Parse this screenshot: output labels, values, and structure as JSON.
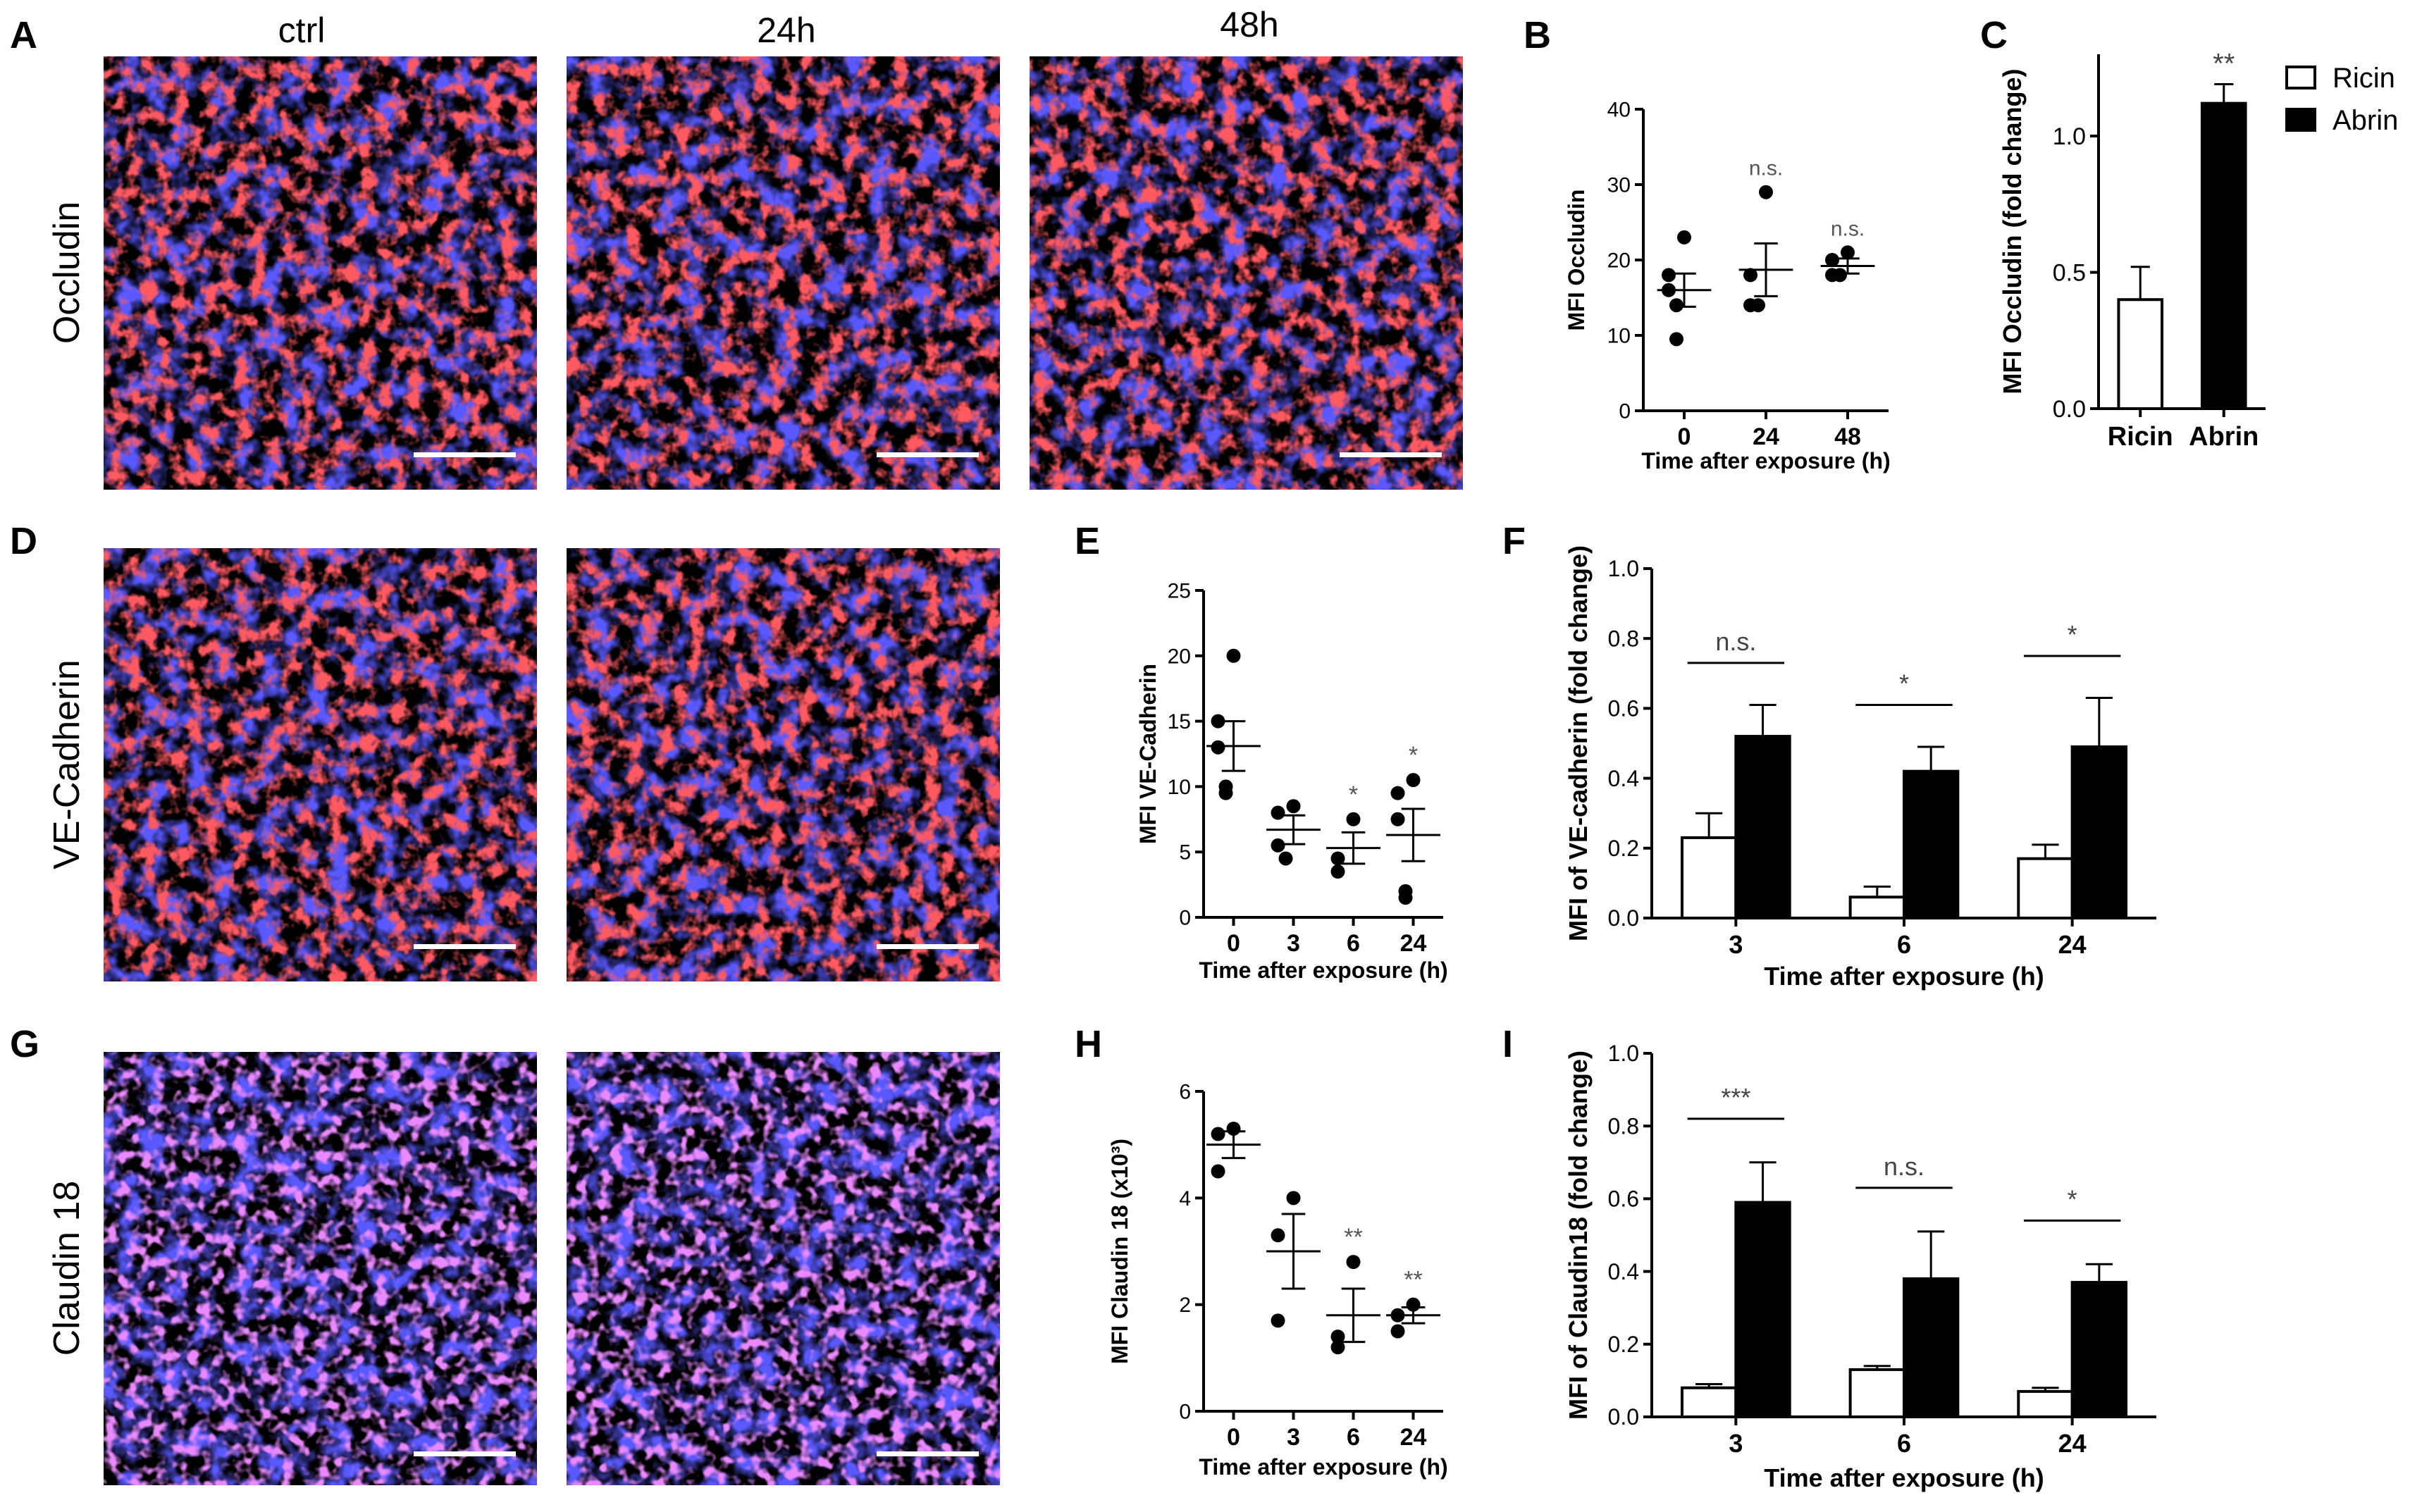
{
  "panel_letters": [
    "A",
    "B",
    "C",
    "D",
    "E",
    "F",
    "G",
    "H",
    "I"
  ],
  "columns": [
    "ctrl",
    "24h",
    "48h"
  ],
  "rows": [
    "Occludin",
    "VE-Cadherin",
    "Claudin 18"
  ],
  "legend": {
    "items": [
      {
        "label": "Ricin",
        "color": "#ffffff"
      },
      {
        "label": "Abrin",
        "color": "#000000"
      }
    ]
  },
  "colors": {
    "nuclei": "#1a1aff",
    "stain": "#ff1a1a",
    "magenta": "#d040ff",
    "background": "#000000"
  },
  "chart_data": [
    {
      "id": "B",
      "type": "scatter",
      "ylabel": "MFI Occludin",
      "xlabel": "Time after exposure (h)",
      "categories": [
        "0",
        "24",
        "48"
      ],
      "ylim": [
        0,
        40
      ],
      "yticks": [
        0,
        10,
        20,
        30,
        40
      ],
      "series": [
        {
          "x": "0",
          "points": [
            23,
            18,
            16,
            14,
            9.5
          ],
          "mean": 16,
          "sem": 2.2
        },
        {
          "x": "24",
          "points": [
            29,
            18,
            14,
            14
          ],
          "mean": 18.7,
          "sem": 3.5
        },
        {
          "x": "48",
          "points": [
            21,
            20,
            18,
            18
          ],
          "mean": 19.2,
          "sem": 1.0
        }
      ],
      "annotations": [
        {
          "x": "24",
          "text": "n.s."
        },
        {
          "x": "48",
          "text": "n.s."
        }
      ]
    },
    {
      "id": "C",
      "type": "bar",
      "ylabel": "MFI Occludin (fold change)",
      "categories": [
        "Ricin",
        "Abrin"
      ],
      "ylim": [
        0,
        1.3
      ],
      "yticks": [
        0.0,
        0.5,
        1.0
      ],
      "values": [
        0.4,
        1.12
      ],
      "errors": [
        0.12,
        0.07
      ],
      "fills": [
        "#ffffff",
        "#000000"
      ],
      "annotations": [
        {
          "x": "Abrin",
          "text": "**"
        }
      ]
    },
    {
      "id": "E",
      "type": "scatter",
      "ylabel": "MFI VE-Cadherin",
      "xlabel": "Time after exposure (h)",
      "categories": [
        "0",
        "3",
        "6",
        "24"
      ],
      "ylim": [
        0,
        25
      ],
      "yticks": [
        0,
        5,
        10,
        15,
        20,
        25
      ],
      "series": [
        {
          "x": "0",
          "points": [
            20,
            15,
            13,
            10,
            9.5
          ],
          "mean": 13.1,
          "sem": 1.9
        },
        {
          "x": "3",
          "points": [
            8.5,
            8,
            5.5,
            4.5
          ],
          "mean": 6.7,
          "sem": 1.1
        },
        {
          "x": "6",
          "points": [
            7.5,
            4.5,
            3.5
          ],
          "mean": 5.3,
          "sem": 1.2
        },
        {
          "x": "24",
          "points": [
            10.5,
            9.5,
            7.5,
            2,
            1.5
          ],
          "mean": 6.3,
          "sem": 2.0
        }
      ],
      "annotations": [
        {
          "x": "6",
          "text": "*"
        },
        {
          "x": "24",
          "text": "*"
        }
      ]
    },
    {
      "id": "F",
      "type": "bar",
      "ylabel": "MFI of VE-cadherin (fold change)",
      "xlabel": "Time after exposure (h)",
      "categories": [
        "3",
        "6",
        "24"
      ],
      "ylim": [
        0,
        1.0
      ],
      "yticks": [
        0.0,
        0.2,
        0.4,
        0.6,
        0.8,
        1.0
      ],
      "series": [
        {
          "name": "Ricin",
          "values": [
            0.23,
            0.06,
            0.17
          ],
          "errors": [
            0.07,
            0.03,
            0.04
          ]
        },
        {
          "name": "Abrin",
          "values": [
            0.52,
            0.42,
            0.49
          ],
          "errors": [
            0.09,
            0.07,
            0.14
          ]
        }
      ],
      "annotations": [
        {
          "x": "3",
          "text": "n.s."
        },
        {
          "x": "6",
          "text": "*"
        },
        {
          "x": "24",
          "text": "*"
        }
      ]
    },
    {
      "id": "H",
      "type": "scatter",
      "ylabel": "MFI Claudin 18 (x10³)",
      "xlabel": "Time after exposure (h)",
      "categories": [
        "0",
        "3",
        "6",
        "24"
      ],
      "ylim": [
        0,
        6
      ],
      "yticks": [
        0,
        2,
        4,
        6
      ],
      "series": [
        {
          "x": "0",
          "points": [
            5.3,
            5.2,
            4.5
          ],
          "mean": 5.0,
          "sem": 0.25
        },
        {
          "x": "3",
          "points": [
            4.0,
            3.3,
            1.7
          ],
          "mean": 3.0,
          "sem": 0.7
        },
        {
          "x": "6",
          "points": [
            2.8,
            1.4,
            1.2
          ],
          "mean": 1.8,
          "sem": 0.5
        },
        {
          "x": "24",
          "points": [
            2.0,
            1.8,
            1.5
          ],
          "mean": 1.8,
          "sem": 0.15
        }
      ],
      "annotations": [
        {
          "x": "6",
          "text": "**"
        },
        {
          "x": "24",
          "text": "**"
        }
      ]
    },
    {
      "id": "I",
      "type": "bar",
      "ylabel": "MFI of Claudin18 (fold change)",
      "xlabel": "Time after exposure (h)",
      "categories": [
        "3",
        "6",
        "24"
      ],
      "ylim": [
        0,
        1.0
      ],
      "yticks": [
        0.0,
        0.2,
        0.4,
        0.6,
        0.8,
        1.0
      ],
      "series": [
        {
          "name": "Ricin",
          "values": [
            0.08,
            0.13,
            0.07
          ],
          "errors": [
            0.01,
            0.01,
            0.01
          ]
        },
        {
          "name": "Abrin",
          "values": [
            0.59,
            0.38,
            0.37
          ],
          "errors": [
            0.11,
            0.13,
            0.05
          ]
        }
      ],
      "annotations": [
        {
          "x": "3",
          "text": "***"
        },
        {
          "x": "6",
          "text": "n.s."
        },
        {
          "x": "24",
          "text": "*"
        }
      ]
    }
  ]
}
